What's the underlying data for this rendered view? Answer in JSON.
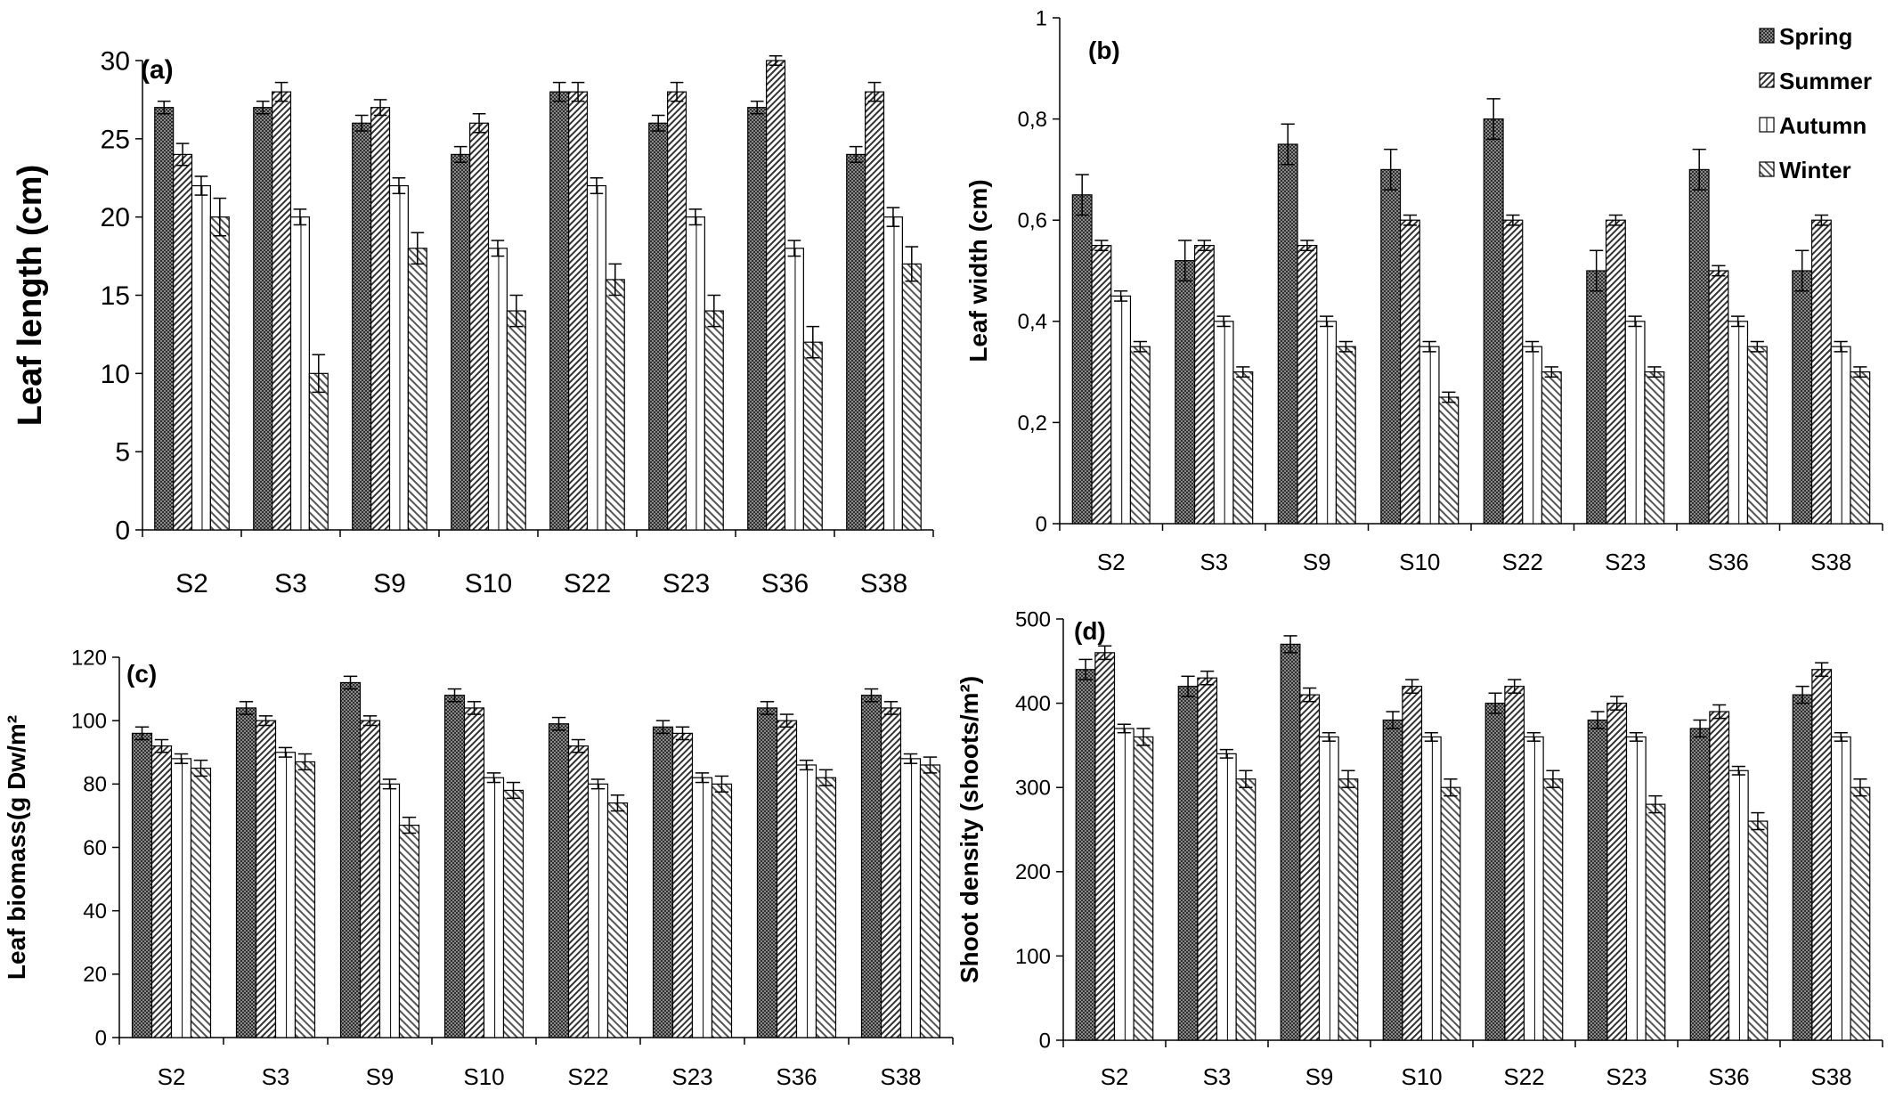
{
  "chart_data": [
    {
      "type": "bar",
      "panel": "(a)",
      "ylabel": "Leaf length (cm)",
      "ylim": [
        0,
        30
      ],
      "yticks": [
        "0",
        "5",
        "10",
        "15",
        "20",
        "25",
        "30"
      ],
      "categories": [
        "S2",
        "S3",
        "S9",
        "S10",
        "S22",
        "S23",
        "S36",
        "S38"
      ],
      "series": [
        {
          "name": "Spring",
          "values": [
            27,
            27,
            26,
            24,
            28,
            26,
            27,
            24
          ],
          "errors": [
            0.4,
            0.4,
            0.5,
            0.5,
            0.6,
            0.5,
            0.4,
            0.5
          ]
        },
        {
          "name": "Summer",
          "values": [
            24,
            28,
            27,
            26,
            28,
            28,
            30,
            28
          ],
          "errors": [
            0.7,
            0.6,
            0.5,
            0.6,
            0.6,
            0.6,
            0.3,
            0.6
          ]
        },
        {
          "name": "Autumn",
          "values": [
            22,
            20,
            22,
            18,
            22,
            20,
            18,
            20
          ],
          "errors": [
            0.6,
            0.5,
            0.5,
            0.5,
            0.5,
            0.5,
            0.5,
            0.6
          ]
        },
        {
          "name": "Winter",
          "values": [
            20,
            10,
            18,
            14,
            16,
            14,
            12,
            17
          ],
          "errors": [
            1.2,
            1.2,
            1.0,
            1.0,
            1.0,
            1.0,
            1.0,
            1.1
          ]
        }
      ],
      "legend": "none"
    },
    {
      "type": "bar",
      "panel": "(b)",
      "ylabel": "Leaf width (cm)",
      "ylim": [
        0,
        1
      ],
      "yticks": [
        "0",
        "0,2",
        "0,4",
        "0,6",
        "0,8",
        "1"
      ],
      "categories": [
        "S2",
        "S3",
        "S9",
        "S10",
        "S22",
        "S23",
        "S36",
        "S38"
      ],
      "series": [
        {
          "name": "Spring",
          "values": [
            0.65,
            0.52,
            0.75,
            0.7,
            0.8,
            0.5,
            0.7,
            0.5
          ],
          "errors": [
            0.04,
            0.04,
            0.04,
            0.04,
            0.04,
            0.04,
            0.04,
            0.04
          ]
        },
        {
          "name": "Summer",
          "values": [
            0.55,
            0.55,
            0.55,
            0.6,
            0.6,
            0.6,
            0.5,
            0.6
          ],
          "errors": [
            0.01,
            0.01,
            0.01,
            0.01,
            0.01,
            0.01,
            0.01,
            0.01
          ]
        },
        {
          "name": "Autumn",
          "values": [
            0.45,
            0.4,
            0.4,
            0.35,
            0.35,
            0.4,
            0.4,
            0.35
          ],
          "errors": [
            0.01,
            0.01,
            0.01,
            0.01,
            0.01,
            0.01,
            0.01,
            0.01
          ]
        },
        {
          "name": "Winter",
          "values": [
            0.35,
            0.3,
            0.35,
            0.25,
            0.3,
            0.3,
            0.35,
            0.3
          ],
          "errors": [
            0.01,
            0.01,
            0.01,
            0.01,
            0.01,
            0.01,
            0.01,
            0.01
          ]
        }
      ],
      "legend": "top-right"
    },
    {
      "type": "bar",
      "panel": "(c)",
      "ylabel": "Leaf biomass(g Dw/m²",
      "ylim": [
        0,
        120
      ],
      "yticks": [
        "0",
        "20",
        "40",
        "60",
        "80",
        "100",
        "120"
      ],
      "categories": [
        "S2",
        "S3",
        "S9",
        "S10",
        "S22",
        "S23",
        "S36",
        "S38"
      ],
      "series": [
        {
          "name": "Spring",
          "values": [
            96,
            104,
            112,
            108,
            99,
            98,
            104,
            108
          ],
          "errors": [
            2,
            2,
            2,
            2,
            2,
            2,
            2,
            2
          ]
        },
        {
          "name": "Summer",
          "values": [
            92,
            100,
            100,
            104,
            92,
            96,
            100,
            104
          ],
          "errors": [
            2,
            1.5,
            1.5,
            2,
            2,
            2,
            2,
            2
          ]
        },
        {
          "name": "Autumn",
          "values": [
            88,
            90,
            80,
            82,
            80,
            82,
            86,
            88
          ],
          "errors": [
            1.5,
            1.5,
            1.5,
            1.5,
            1.5,
            1.5,
            1.5,
            1.5
          ]
        },
        {
          "name": "Winter",
          "values": [
            85,
            87,
            67,
            78,
            74,
            80,
            82,
            86
          ],
          "errors": [
            2.5,
            2.5,
            2.5,
            2.5,
            2.5,
            2.5,
            2.5,
            2.5
          ]
        }
      ],
      "legend": "none"
    },
    {
      "type": "bar",
      "panel": "(d)",
      "ylabel": "Shoot density (shoots/m²)",
      "ylim": [
        0,
        500
      ],
      "yticks": [
        "0",
        "100",
        "200",
        "300",
        "400",
        "500"
      ],
      "categories": [
        "S2",
        "S3",
        "S9",
        "S10",
        "S22",
        "S23",
        "S36",
        "S38"
      ],
      "series": [
        {
          "name": "Spring",
          "values": [
            440,
            420,
            470,
            380,
            400,
            380,
            370,
            410
          ],
          "errors": [
            12,
            12,
            10,
            10,
            12,
            10,
            10,
            10
          ]
        },
        {
          "name": "Summer",
          "values": [
            460,
            430,
            410,
            420,
            420,
            400,
            390,
            440
          ],
          "errors": [
            8,
            8,
            8,
            8,
            8,
            8,
            8,
            8
          ]
        },
        {
          "name": "Autumn",
          "values": [
            370,
            340,
            360,
            360,
            360,
            360,
            320,
            360
          ],
          "errors": [
            5,
            5,
            5,
            5,
            5,
            5,
            5,
            5
          ]
        },
        {
          "name": "Winter",
          "values": [
            360,
            310,
            310,
            300,
            310,
            280,
            260,
            300
          ],
          "errors": [
            10,
            10,
            10,
            10,
            10,
            10,
            10,
            10
          ]
        }
      ],
      "legend": "none"
    }
  ]
}
